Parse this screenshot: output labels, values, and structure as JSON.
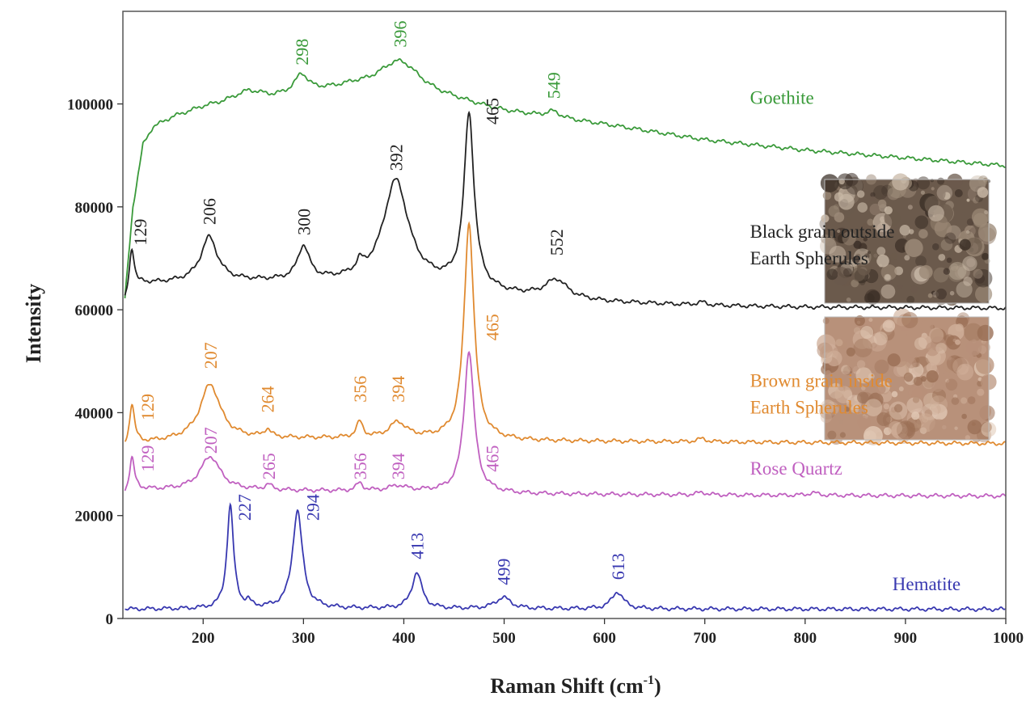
{
  "chart_data": {
    "type": "line",
    "xlabel": "Raman Shift (cm",
    "xlabel_superscript": "-1",
    "xlabel_suffix": ")",
    "ylabel": "Intensity",
    "xlim": [
      120,
      1000
    ],
    "ylim": [
      0,
      118000
    ],
    "x_ticks": [
      200,
      300,
      400,
      500,
      600,
      700,
      800,
      900,
      1000
    ],
    "x_tick_labels": [
      "200",
      "300",
      "400",
      "500",
      "600",
      "700",
      "800",
      "900",
      "1000"
    ],
    "y_ticks": [
      0,
      20000,
      40000,
      60000,
      80000,
      100000
    ],
    "y_tick_labels": [
      "0",
      "20000",
      "40000",
      "60000",
      "80000",
      "100000"
    ],
    "grid": false,
    "legend": "none",
    "series": [
      {
        "name": "Goethite",
        "name_lines": [
          "Goethite"
        ],
        "label_at": [
          745,
          100000
        ],
        "color": "#3a9a3a",
        "baseline": [
          [
            122,
            62000
          ],
          [
            130,
            80000
          ],
          [
            140,
            92000
          ],
          [
            150,
            95500
          ],
          [
            170,
            97500
          ],
          [
            200,
            99500
          ],
          [
            220,
            100500
          ],
          [
            245,
            102500
          ],
          [
            270,
            101500
          ],
          [
            320,
            102500
          ],
          [
            350,
            103000
          ],
          [
            450,
            100500
          ],
          [
            500,
            98500
          ],
          [
            600,
            96000
          ],
          [
            700,
            93000
          ],
          [
            800,
            91000
          ],
          [
            900,
            89500
          ],
          [
            1000,
            88000
          ]
        ],
        "peaks": [
          {
            "x": 298,
            "h": 3500,
            "w": 8
          },
          {
            "x": 396,
            "h": 6500,
            "w": 26
          },
          {
            "x": 549,
            "h": 1200,
            "w": 8
          }
        ],
        "peak_labels": [
          {
            "text": "298",
            "x": 298,
            "y": 107500
          },
          {
            "text": "396",
            "x": 396,
            "y": 111000
          },
          {
            "text": "549",
            "x": 549,
            "y": 101000
          }
        ]
      },
      {
        "name": "Black grain outside Earth Spherules",
        "name_lines": [
          "Black grain outside",
          "Earth Spherules"
        ],
        "label_at": [
          745,
          74000
        ],
        "color": "#222222",
        "baseline": [
          [
            122,
            61000
          ],
          [
            127,
            63500
          ],
          [
            140,
            65000
          ],
          [
            200,
            65500
          ],
          [
            300,
            65500
          ],
          [
            400,
            65500
          ],
          [
            450,
            64500
          ],
          [
            500,
            63000
          ],
          [
            600,
            61500
          ],
          [
            700,
            60800
          ],
          [
            800,
            60500
          ],
          [
            1000,
            60300
          ]
        ],
        "peaks": [
          {
            "x": 129,
            "h": 8000,
            "w": 3
          },
          {
            "x": 206,
            "h": 8500,
            "w": 10
          },
          {
            "x": 300,
            "h": 6500,
            "w": 7
          },
          {
            "x": 356,
            "h": 2000,
            "w": 4
          },
          {
            "x": 392,
            "h": 19500,
            "w": 15
          },
          {
            "x": 465,
            "h": 33500,
            "w": 6
          },
          {
            "x": 552,
            "h": 3500,
            "w": 13
          },
          {
            "x": 697,
            "h": 600,
            "w": 6
          }
        ],
        "peak_labels": [
          {
            "text": "129",
            "x": 137,
            "y": 72500
          },
          {
            "text": "206",
            "x": 206,
            "y": 76500
          },
          {
            "text": "300",
            "x": 300,
            "y": 74500
          },
          {
            "text": "392",
            "x": 392,
            "y": 87000
          },
          {
            "text": "465",
            "x": 488,
            "y": 96000
          },
          {
            "text": "552",
            "x": 552,
            "y": 70500
          }
        ]
      },
      {
        "name": "Brown grain inside Earth Spherules",
        "name_lines": [
          "Brown grain inside",
          "Earth Spherules"
        ],
        "label_at": [
          745,
          45000
        ],
        "color": "#e08a30",
        "baseline": [
          [
            122,
            33000
          ],
          [
            135,
            34000
          ],
          [
            200,
            35000
          ],
          [
            300,
            35000
          ],
          [
            420,
            35000
          ],
          [
            520,
            34500
          ],
          [
            700,
            34300
          ],
          [
            1000,
            34000
          ]
        ],
        "peaks": [
          {
            "x": 129,
            "h": 8000,
            "w": 3
          },
          {
            "x": 207,
            "h": 10500,
            "w": 12
          },
          {
            "x": 264,
            "h": 1500,
            "w": 4
          },
          {
            "x": 356,
            "h": 3000,
            "w": 4
          },
          {
            "x": 394,
            "h": 3000,
            "w": 10
          },
          {
            "x": 465,
            "h": 42000,
            "w": 6
          },
          {
            "x": 697,
            "h": 600,
            "w": 6
          }
        ],
        "peak_labels": [
          {
            "text": "129",
            "x": 144,
            "y": 38500
          },
          {
            "text": "207",
            "x": 207,
            "y": 48500
          },
          {
            "text": "264",
            "x": 264,
            "y": 40000
          },
          {
            "text": "356",
            "x": 356,
            "y": 42000
          },
          {
            "text": "394",
            "x": 394,
            "y": 42000
          },
          {
            "text": "465",
            "x": 488,
            "y": 54000
          }
        ]
      },
      {
        "name": "Rose Quartz",
        "name_lines": [
          "Rose Quartz"
        ],
        "label_at": [
          745,
          28000
        ],
        "color": "#c060c0",
        "baseline": [
          [
            122,
            24000
          ],
          [
            135,
            25000
          ],
          [
            200,
            25000
          ],
          [
            300,
            24800
          ],
          [
            420,
            24700
          ],
          [
            520,
            24200
          ],
          [
            700,
            24000
          ],
          [
            1000,
            23800
          ]
        ],
        "peaks": [
          {
            "x": 129,
            "h": 6500,
            "w": 3
          },
          {
            "x": 207,
            "h": 6500,
            "w": 12
          },
          {
            "x": 265,
            "h": 1000,
            "w": 4
          },
          {
            "x": 356,
            "h": 1500,
            "w": 4
          },
          {
            "x": 394,
            "h": 1000,
            "w": 10
          },
          {
            "x": 465,
            "h": 27500,
            "w": 6
          },
          {
            "x": 697,
            "h": 500,
            "w": 6
          },
          {
            "x": 808,
            "h": 500,
            "w": 6
          }
        ],
        "peak_labels": [
          {
            "text": "129",
            "x": 144,
            "y": 28500
          },
          {
            "text": "207",
            "x": 207,
            "y": 32000
          },
          {
            "text": "265",
            "x": 265,
            "y": 27000
          },
          {
            "text": "356",
            "x": 356,
            "y": 27000
          },
          {
            "text": "394",
            "x": 394,
            "y": 27000
          },
          {
            "text": "465",
            "x": 488,
            "y": 28500
          }
        ]
      },
      {
        "name": "Hematite",
        "name_lines": [
          "Hematite"
        ],
        "label_at": [
          887,
          5500
        ],
        "color": "#3838b0",
        "baseline": [
          [
            122,
            1800
          ],
          [
            300,
            1900
          ],
          [
            1000,
            1800
          ]
        ],
        "peaks": [
          {
            "x": 227,
            "h": 20000,
            "w": 4
          },
          {
            "x": 245,
            "h": 1000,
            "w": 3
          },
          {
            "x": 294,
            "h": 19000,
            "w": 6
          },
          {
            "x": 413,
            "h": 7000,
            "w": 6
          },
          {
            "x": 499,
            "h": 2200,
            "w": 9
          },
          {
            "x": 613,
            "h": 3300,
            "w": 7
          }
        ],
        "peak_labels": [
          {
            "text": "227",
            "x": 241,
            "y": 19000
          },
          {
            "text": "294",
            "x": 309,
            "y": 19000
          },
          {
            "text": "413",
            "x": 413,
            "y": 11500
          },
          {
            "text": "499",
            "x": 499,
            "y": 6500
          },
          {
            "text": "613",
            "x": 613,
            "y": 7500
          }
        ]
      }
    ]
  },
  "insets": [
    {
      "name": "black-grain-micrograph",
      "palette": [
        "#3a2e26",
        "#6b5a4c",
        "#9c8a78",
        "#c8b8a6"
      ]
    },
    {
      "name": "brown-grain-micrograph",
      "palette": [
        "#9a6f55",
        "#b8917a",
        "#cfae98",
        "#e0c7b3"
      ]
    }
  ]
}
